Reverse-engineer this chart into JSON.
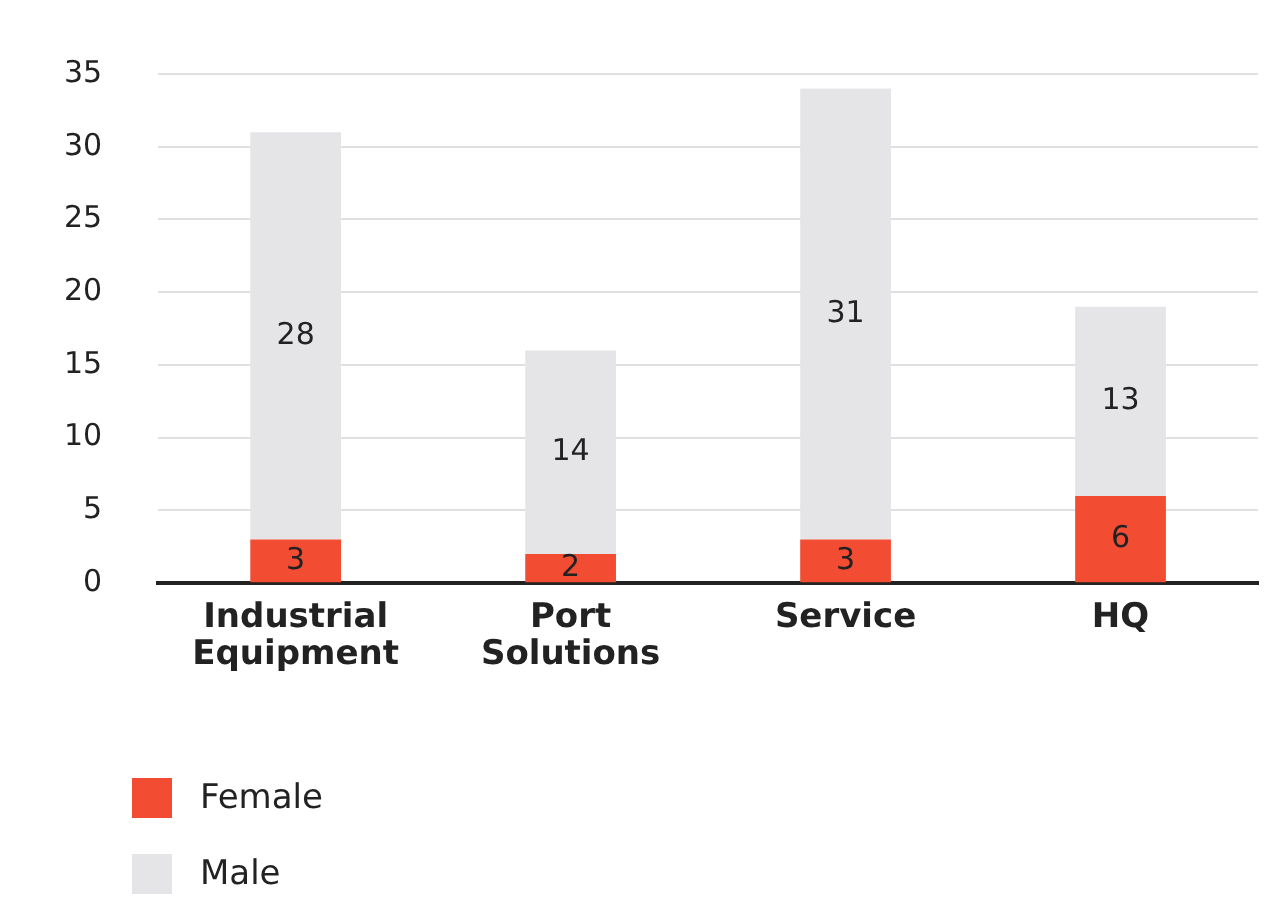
{
  "chart_data": {
    "type": "bar",
    "stacked": true,
    "categories": [
      "Industrial Equipment",
      "Port Solutions",
      "Service",
      "HQ"
    ],
    "series": [
      {
        "name": "Female",
        "color": "#f24c33",
        "values": [
          3,
          2,
          3,
          6
        ]
      },
      {
        "name": "Male",
        "color": "#e5e5e7",
        "values": [
          28,
          14,
          31,
          13
        ]
      }
    ],
    "ylim": [
      0,
      35
    ],
    "yticks": [
      0,
      5,
      10,
      15,
      20,
      25,
      30,
      35
    ],
    "grid": "y",
    "legend": "bottom left",
    "data_labels": true
  }
}
